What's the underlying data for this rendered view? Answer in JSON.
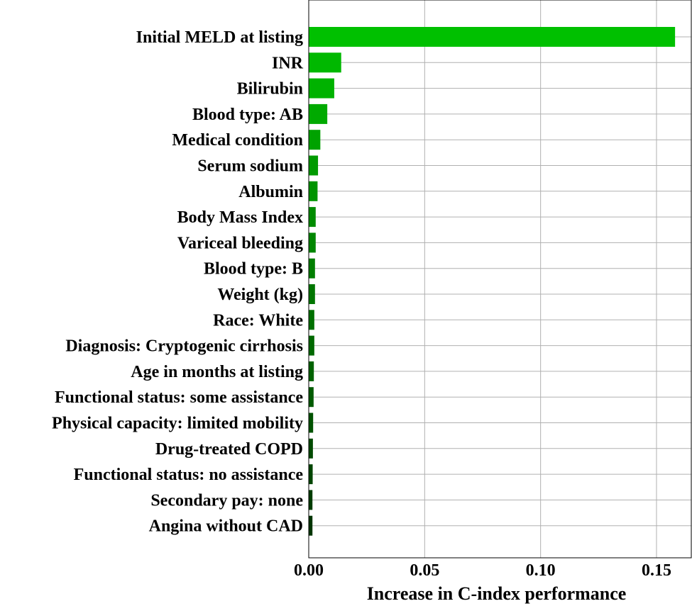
{
  "chart_data": {
    "type": "bar",
    "orientation": "horizontal",
    "title": "",
    "xlabel": "Increase in C-index performance",
    "ylabel": "",
    "xlim": [
      0,
      0.165
    ],
    "xticks": [
      0.0,
      0.05,
      0.1,
      0.15
    ],
    "xtick_labels": [
      "0.00",
      "0.05",
      "0.10",
      "0.15"
    ],
    "grid": true,
    "categories": [
      "Initial MELD at listing",
      "INR",
      "Bilirubin",
      "Blood type: AB",
      "Medical condition",
      "Serum sodium",
      "Albumin",
      "Body Mass Index",
      "Variceal bleeding",
      "Blood type: B",
      "Weight (kg)",
      "Race: White",
      "Diagnosis: Cryptogenic cirrhosis",
      "Age in months at listing",
      "Functional status: some assistance",
      "Physical capacity: limited mobility",
      "Drug-treated COPD",
      "Functional status: no assistance",
      "Secondary pay: none",
      "Angina without CAD"
    ],
    "values": [
      0.158,
      0.014,
      0.011,
      0.008,
      0.005,
      0.004,
      0.0038,
      0.003,
      0.003,
      0.0027,
      0.0027,
      0.0024,
      0.0024,
      0.0022,
      0.0021,
      0.0019,
      0.0018,
      0.0017,
      0.0016,
      0.0016
    ],
    "colors": [
      "#00c000",
      "#00b800",
      "#00b200",
      "#00aa00",
      "#00a200",
      "#009a00",
      "#009400",
      "#008c00",
      "#008600",
      "#007e00",
      "#007600",
      "#007000",
      "#006800",
      "#006200",
      "#005a00",
      "#005200",
      "#004a00",
      "#004400",
      "#003c00",
      "#003400"
    ]
  }
}
